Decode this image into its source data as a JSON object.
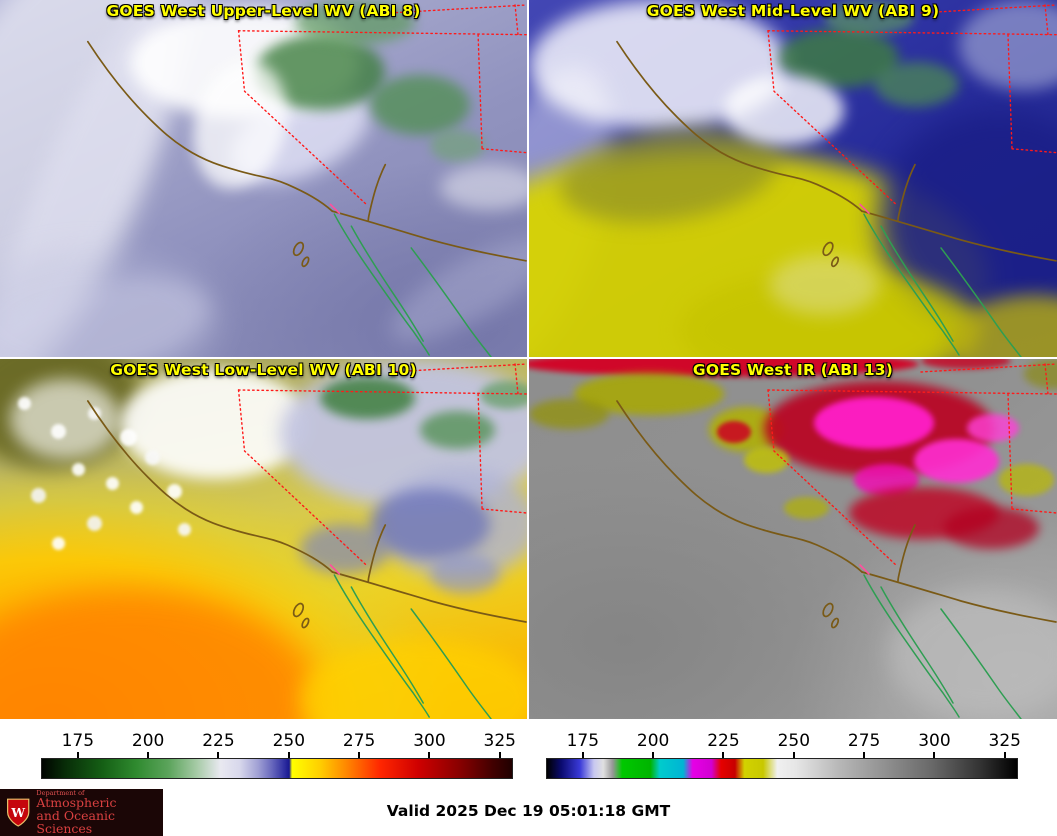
{
  "panels": [
    {
      "title": "GOES West Upper-Level WV (ABI 8)"
    },
    {
      "title": "GOES West Mid-Level WV (ABI 9)"
    },
    {
      "title": "GOES West Low-Level WV (ABI 10)"
    },
    {
      "title": "GOES West IR (ABI 13)"
    }
  ],
  "title_color": "#ffff00",
  "colorbars": {
    "left": {
      "label_values": [
        "175",
        "200",
        "225",
        "250",
        "275",
        "300",
        "325"
      ],
      "stops": [
        "#000400 0%",
        "#082d08 5%",
        "#156015 13%",
        "#2f8a2f 20%",
        "#5ca45c 27%",
        "#a7cba7 33%",
        "#e9e9f1 38%",
        "#d8d8ec 42%",
        "#a0a0d4 46%",
        "#6666bc 49%",
        "#3030a2 51.5%",
        "#181890 52.6%",
        "#ffff00 53.2%",
        "#ffd000 59%",
        "#ff8400 65%",
        "#ff2600 72%",
        "#cf0000 80%",
        "#870000 89%",
        "#410000 96%",
        "#200000 100%"
      ]
    },
    "right": {
      "label_values": [
        "175",
        "200",
        "225",
        "250",
        "275",
        "300",
        "325"
      ],
      "stops": [
        "#000000 0%",
        "#0a0a6e 3%",
        "#3a3ad8 7%",
        "#c8c8f0 10%",
        "#e0e0e0 12%",
        "#969696 14%",
        "#00c800 16%",
        "#00b400 22%",
        "#00cccc 24%",
        "#00b4d4 29%",
        "#e600e6 31%",
        "#d200d2 35%",
        "#e60000 37%",
        "#c80000 40%",
        "#d2d200 42%",
        "#c8c800 46%",
        "#f0f0f0 49%",
        "#e6e6e6 53%",
        "#b8b8b8 62%",
        "#909090 72%",
        "#686868 82%",
        "#343434 92%",
        "#000000 100%"
      ]
    }
  },
  "map_overlay": {
    "state_border_color": "#ff1a1a",
    "coast_color": "#7a5a16",
    "mexico_coast_color": "#2e9e52",
    "border_segment_color": "#ff4f9e"
  },
  "footer": {
    "valid_time": "Valid 2025 Dec 19 05:01:18 GMT",
    "logo": {
      "dept": "Department of",
      "line1": "Atmospheric",
      "line2": "and Oceanic Sciences",
      "crest_letter": "W",
      "uw_red": "#c5050c"
    }
  }
}
